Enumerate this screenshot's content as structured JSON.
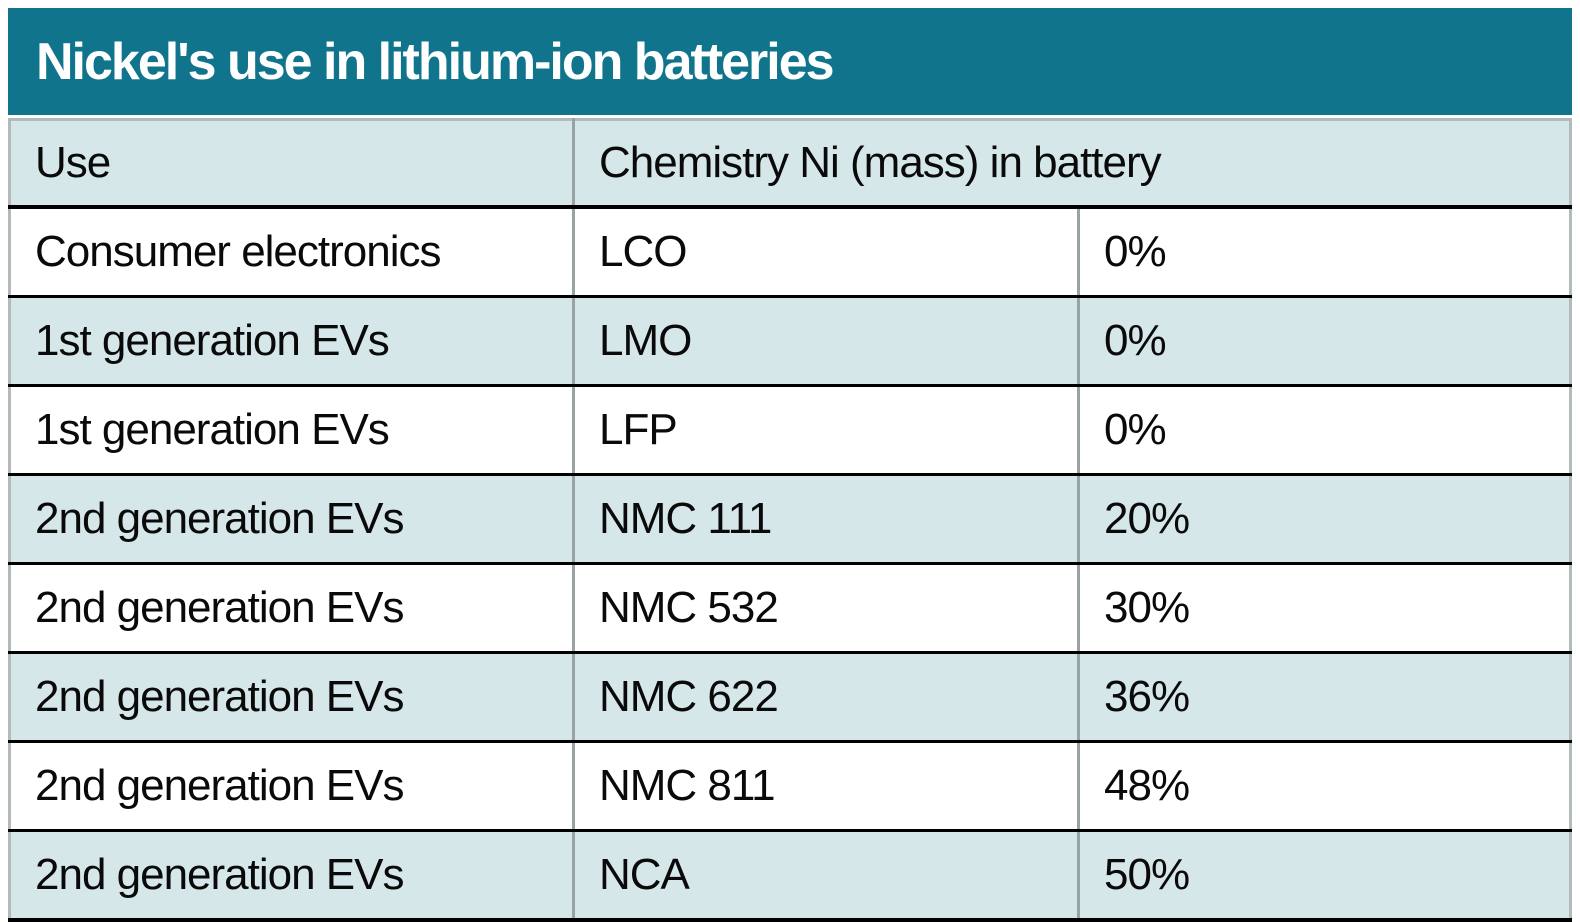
{
  "title_bar": {
    "title": "Nickel's use in lithium-ion batteries"
  },
  "table": {
    "header": {
      "use": "Use",
      "chemistry_ni": "Chemistry Ni (mass) in battery"
    },
    "rows": [
      {
        "use": "Consumer electronics",
        "chemistry": "LCO",
        "ni_mass": "0%"
      },
      {
        "use": "1st generation EVs",
        "chemistry": "LMO",
        "ni_mass": "0%"
      },
      {
        "use": "1st generation EVs",
        "chemistry": "LFP",
        "ni_mass": "0%"
      },
      {
        "use": "2nd generation EVs",
        "chemistry": "NMC 111",
        "ni_mass": "20%"
      },
      {
        "use": "2nd generation EVs",
        "chemistry": "NMC 532",
        "ni_mass": "30%"
      },
      {
        "use": "2nd generation EVs",
        "chemistry": "NMC 622",
        "ni_mass": "36%"
      },
      {
        "use": "2nd generation EVs",
        "chemistry": "NMC 811",
        "ni_mass": "48%"
      },
      {
        "use": "2nd generation EVs",
        "chemistry": "NCA",
        "ni_mass": "50%"
      }
    ]
  },
  "colors": {
    "title_bar_background": "#10758c",
    "title_text": "#ffffff",
    "row_alternate_background": "#d6e7ea",
    "row_white_background": "#ffffff",
    "row_separator": "#000000",
    "column_divider": "#9aa3a4",
    "outer_border": "#b2babb",
    "cell_text": "#0a0a0a"
  },
  "chart_data": {
    "type": "table",
    "title": "Nickel's use in lithium-ion batteries",
    "columns": [
      "Use",
      "Chemistry",
      "Ni (mass) in battery"
    ],
    "header_display": [
      "Use",
      "Chemistry Ni (mass) in battery"
    ],
    "rows": [
      [
        "Consumer electronics",
        "LCO",
        "0%"
      ],
      [
        "1st generation EVs",
        "LMO",
        "0%"
      ],
      [
        "1st generation EVs",
        "LFP",
        "0%"
      ],
      [
        "2nd generation EVs",
        "NMC 111",
        "20%"
      ],
      [
        "2nd generation EVs",
        "NMC 532",
        "30%"
      ],
      [
        "2nd generation EVs",
        "NMC 622",
        "36%"
      ],
      [
        "2nd generation EVs",
        "NMC 811",
        "48%"
      ],
      [
        "2nd generation EVs",
        "NCA",
        "50%"
      ]
    ]
  }
}
